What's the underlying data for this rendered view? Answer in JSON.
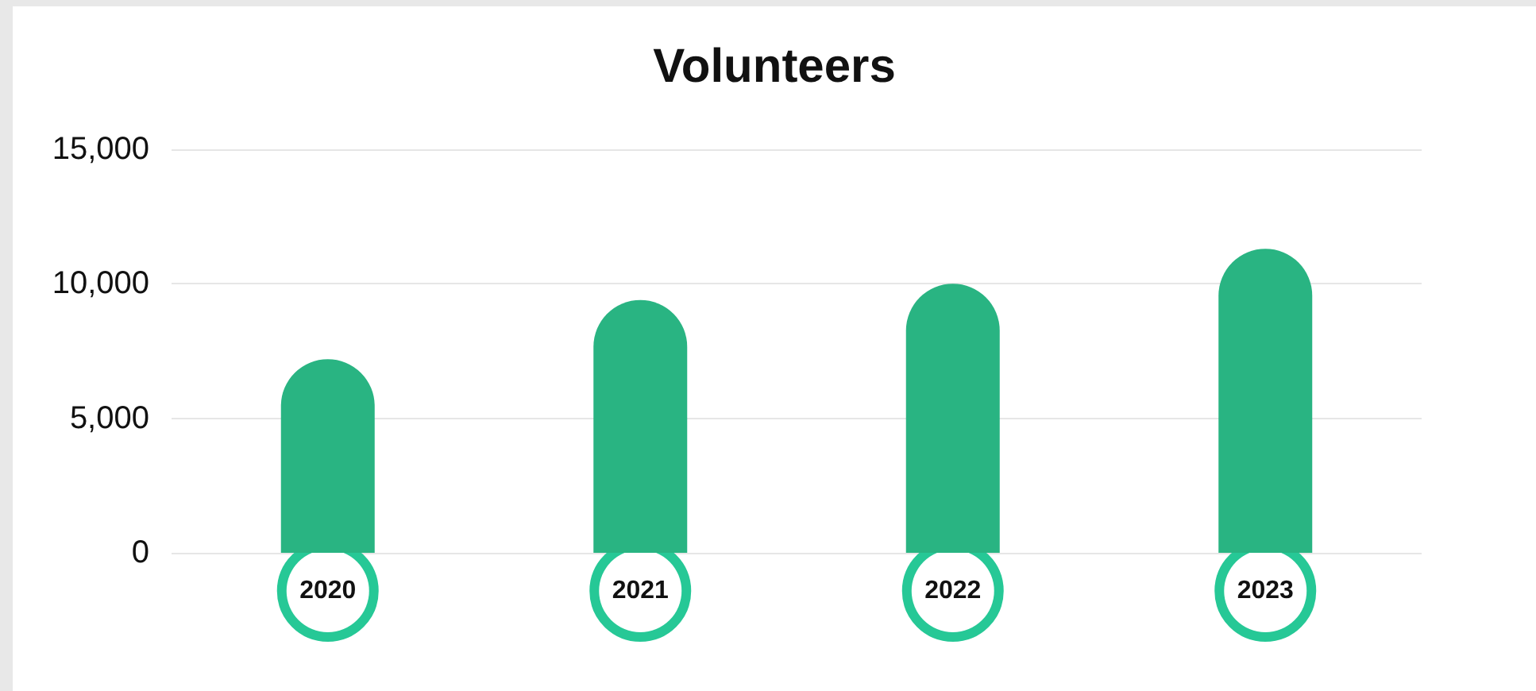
{
  "chart_data": {
    "type": "bar",
    "title": "Volunteers",
    "categories": [
      "2020",
      "2021",
      "2022",
      "2023"
    ],
    "values": [
      7200,
      9400,
      10000,
      11300
    ],
    "color": "#29b482",
    "ylim": [
      0,
      15000
    ],
    "yticks": [
      {
        "value": 0,
        "label": "0"
      },
      {
        "value": 5000,
        "label": "5,000"
      },
      {
        "value": 10000,
        "label": "10,000"
      },
      {
        "value": 15000,
        "label": "15,000"
      }
    ],
    "grid": "y"
  }
}
